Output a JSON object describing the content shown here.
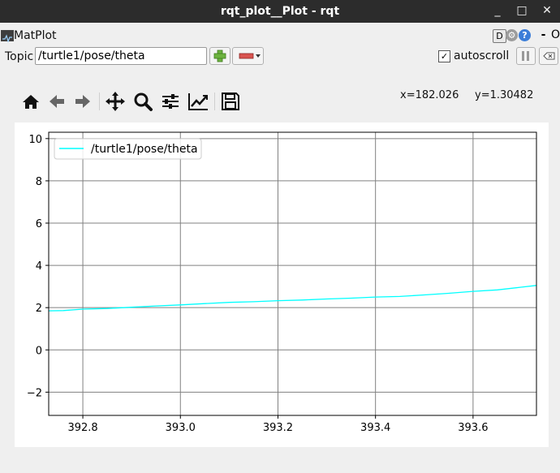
{
  "window": {
    "title": "rqt_plot__Plot - rqt",
    "minimize_glyph": "_",
    "maximize_glyph": "□",
    "close_glyph": "✕"
  },
  "plugin": {
    "label": "MatPlot",
    "d_label": "D",
    "minus_label": "-",
    "o_label": "O"
  },
  "topic": {
    "label": "Topic",
    "value": "/turtle1/pose/theta",
    "autoscroll_label": "autoscroll",
    "autoscroll_checked": true
  },
  "toolbar": {
    "icons": [
      "home-icon",
      "back-icon",
      "forward-icon",
      "pan-icon",
      "zoom-icon",
      "configure-subplots-icon",
      "edit-axis-icon",
      "save-icon"
    ]
  },
  "coords": {
    "x": "x=182.026",
    "y": "y=1.30482"
  },
  "colors": {
    "line": "#00ffff",
    "titlebar": "#2c2c2c",
    "add_button": "#6db33f",
    "remove_button": "#d9534f"
  },
  "chart_data": {
    "type": "line",
    "title": "",
    "xlabel": "",
    "ylabel": "",
    "xlim": [
      392.73,
      393.73
    ],
    "ylim": [
      -3.1,
      10.3
    ],
    "xticks": [
      392.8,
      393.0,
      393.2,
      393.4,
      393.6
    ],
    "xtick_labels": [
      "392.8",
      "393.0",
      "393.2",
      "393.4",
      "393.6"
    ],
    "yticks": [
      -2,
      0,
      2,
      4,
      6,
      8,
      10
    ],
    "ytick_labels": [
      "−2",
      "0",
      "2",
      "4",
      "6",
      "8",
      "10"
    ],
    "grid": true,
    "legend_position": "top-left",
    "series": [
      {
        "name": "/turtle1/pose/theta",
        "color": "#00ffff",
        "x": [
          392.73,
          392.76,
          392.8,
          392.85,
          392.9,
          392.95,
          393.0,
          393.05,
          393.1,
          393.15,
          393.2,
          393.25,
          393.3,
          393.35,
          393.4,
          393.45,
          393.5,
          393.55,
          393.6,
          393.65,
          393.7,
          393.73
        ],
        "y": [
          1.85,
          1.86,
          1.93,
          1.96,
          2.02,
          2.08,
          2.13,
          2.19,
          2.25,
          2.28,
          2.33,
          2.36,
          2.41,
          2.45,
          2.5,
          2.53,
          2.6,
          2.68,
          2.77,
          2.84,
          2.97,
          3.05
        ]
      }
    ]
  }
}
